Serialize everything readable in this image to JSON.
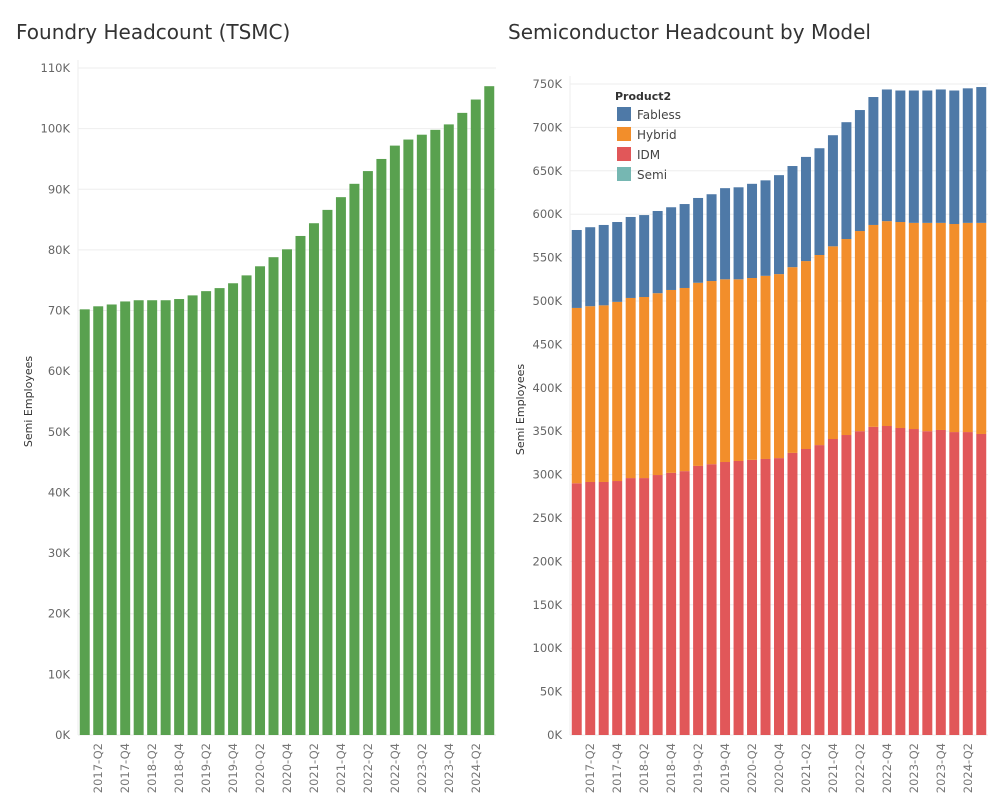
{
  "charts_meta": {
    "left_title": "Foundry Headcount (TSMC)",
    "right_title": "Semiconductor Headcount by Model"
  },
  "chart_data": [
    {
      "type": "bar",
      "title": "Foundry Headcount (TSMC)",
      "xlabel": "",
      "ylabel": "Semi Employees",
      "ylim": [
        0,
        110
      ],
      "y_unit": "K",
      "yticks": [
        0,
        10,
        20,
        30,
        40,
        50,
        60,
        70,
        80,
        90,
        100,
        110
      ],
      "grid": true,
      "color": "#59a14f",
      "categories": [
        "2017-Q1",
        "2017-Q2",
        "2017-Q3",
        "2017-Q4",
        "2018-Q1",
        "2018-Q2",
        "2018-Q3",
        "2018-Q4",
        "2019-Q1",
        "2019-Q2",
        "2019-Q3",
        "2019-Q4",
        "2020-Q1",
        "2020-Q2",
        "2020-Q3",
        "2020-Q4",
        "2021-Q1",
        "2021-Q2",
        "2021-Q3",
        "2021-Q4",
        "2022-Q1",
        "2022-Q2",
        "2022-Q3",
        "2022-Q4",
        "2023-Q1",
        "2023-Q2",
        "2023-Q3",
        "2023-Q4",
        "2024-Q1",
        "2024-Q2",
        "2024-Q3"
      ],
      "tick_labels": [
        "2017-Q2",
        "2017-Q4",
        "2018-Q2",
        "2018-Q4",
        "2019-Q2",
        "2019-Q4",
        "2020-Q2",
        "2020-Q4",
        "2021-Q2",
        "2021-Q4",
        "2022-Q2",
        "2022-Q4",
        "2023-Q2",
        "2023-Q4",
        "2024-Q2"
      ],
      "values": [
        70.2,
        70.7,
        71.0,
        71.5,
        71.7,
        71.7,
        71.7,
        71.9,
        72.5,
        73.2,
        73.7,
        74.5,
        75.8,
        77.3,
        78.8,
        80.1,
        82.3,
        84.4,
        86.6,
        88.7,
        90.9,
        93.0,
        95.0,
        97.2,
        98.2,
        99.0,
        99.8,
        100.7,
        102.6,
        104.8,
        107.0
      ]
    },
    {
      "type": "bar",
      "stacked": true,
      "title": "Semiconductor Headcount by Model",
      "xlabel": "",
      "ylabel": "Semi Employees",
      "ylim": [
        0,
        750
      ],
      "y_unit": "K",
      "yticks": [
        0,
        50,
        100,
        150,
        200,
        250,
        300,
        350,
        400,
        450,
        500,
        550,
        600,
        650,
        700,
        750
      ],
      "grid": true,
      "legend": {
        "title": "Product2",
        "position": "top-left"
      },
      "categories": [
        "2017-Q1",
        "2017-Q2",
        "2017-Q3",
        "2017-Q4",
        "2018-Q1",
        "2018-Q2",
        "2018-Q3",
        "2018-Q4",
        "2019-Q1",
        "2019-Q2",
        "2019-Q3",
        "2019-Q4",
        "2020-Q1",
        "2020-Q2",
        "2020-Q3",
        "2020-Q4",
        "2021-Q1",
        "2021-Q2",
        "2021-Q3",
        "2021-Q4",
        "2022-Q1",
        "2022-Q2",
        "2022-Q3",
        "2022-Q4",
        "2023-Q1",
        "2023-Q2",
        "2023-Q3",
        "2023-Q4",
        "2024-Q1",
        "2024-Q2",
        "2024-Q3"
      ],
      "tick_labels": [
        "2017-Q2",
        "2017-Q4",
        "2018-Q2",
        "2018-Q4",
        "2019-Q2",
        "2019-Q4",
        "2020-Q2",
        "2020-Q4",
        "2021-Q2",
        "2021-Q4",
        "2022-Q2",
        "2022-Q4",
        "2023-Q2",
        "2023-Q4",
        "2024-Q2"
      ],
      "series": [
        {
          "name": "IDM",
          "color": "#e15759",
          "values": [
            290,
            291.5,
            291.5,
            292.6,
            296,
            296,
            299.5,
            302,
            304,
            310,
            312,
            314.5,
            315.7,
            317,
            318,
            319,
            325,
            329.5,
            334,
            341,
            345.6,
            350,
            355,
            356,
            353.7,
            352.5,
            350,
            351.4,
            349,
            349,
            346.8
          ]
        },
        {
          "name": "Hybrid",
          "color": "#f28e2b",
          "values": [
            202,
            202.5,
            203.5,
            206.4,
            207.5,
            208.6,
            209.5,
            210.7,
            211,
            211,
            211,
            210.5,
            209.3,
            209.5,
            211,
            212,
            214,
            216.5,
            219,
            222,
            225.8,
            230.6,
            232.6,
            236,
            237.3,
            237.5,
            240,
            238.6,
            239.7,
            241,
            243.2
          ]
        },
        {
          "name": "Fabless",
          "color": "#4e79a7",
          "values": [
            89.8,
            91,
            92.6,
            92,
            93.3,
            94.4,
            94.7,
            95.3,
            96.7,
            97.7,
            100,
            105,
            106,
            108.5,
            110,
            114,
            116.5,
            120,
            123,
            128,
            134.6,
            139.4,
            147.4,
            151.7,
            151.5,
            152.5,
            152.5,
            153.7,
            153.8,
            155,
            156.5
          ]
        },
        {
          "name": "Semi",
          "color": "#76b7b2",
          "values": [
            0,
            0,
            0,
            0,
            0,
            0,
            0,
            0,
            0,
            0,
            0,
            0,
            0,
            0,
            0,
            0,
            0,
            0,
            0,
            0,
            0,
            0,
            0,
            0,
            0,
            0,
            0,
            0,
            0,
            0,
            0
          ]
        }
      ],
      "legend_order": [
        "Fabless",
        "Hybrid",
        "IDM",
        "Semi"
      ]
    }
  ]
}
